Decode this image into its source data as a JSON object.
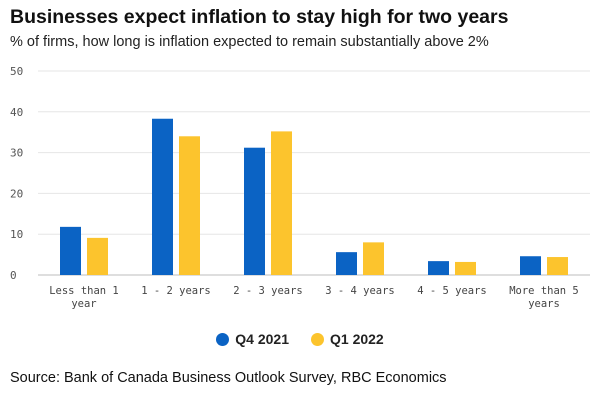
{
  "header": {
    "title": "Businesses expect inflation to stay high for two years",
    "subtitle": "% of firms, how long is inflation expected to remain substantially above 2%"
  },
  "source": "Source: Bank of Canada Business Outlook Survey, RBC Economics",
  "colors": {
    "q4_2021": "#0b63c4",
    "q1_2022": "#fcc42d",
    "grid": "#e6e6e6",
    "axis": "#bdbdbd"
  },
  "chart_data": {
    "type": "bar",
    "title": "Businesses expect inflation to stay high for two years",
    "subtitle": "% of firms, how long is inflation expected to remain substantially above 2%",
    "xlabel": "",
    "ylabel": "",
    "ylim": [
      0,
      50
    ],
    "yticks": [
      "0",
      "10",
      "20",
      "30",
      "40",
      "50"
    ],
    "grid": true,
    "legend_position": "bottom-center",
    "categories": [
      [
        "Less than 1",
        "year"
      ],
      [
        "1 - 2 years"
      ],
      [
        "2 - 3 years"
      ],
      [
        "3 - 4 years"
      ],
      [
        "4 - 5 years"
      ],
      [
        "More than 5",
        "years"
      ]
    ],
    "series": [
      {
        "name": "Q4 2021",
        "values": [
          11.8,
          38.3,
          31.2,
          5.6,
          3.4,
          4.6
        ]
      },
      {
        "name": "Q1 2022",
        "values": [
          9.1,
          34.0,
          35.2,
          8.0,
          3.2,
          4.4
        ]
      }
    ]
  }
}
